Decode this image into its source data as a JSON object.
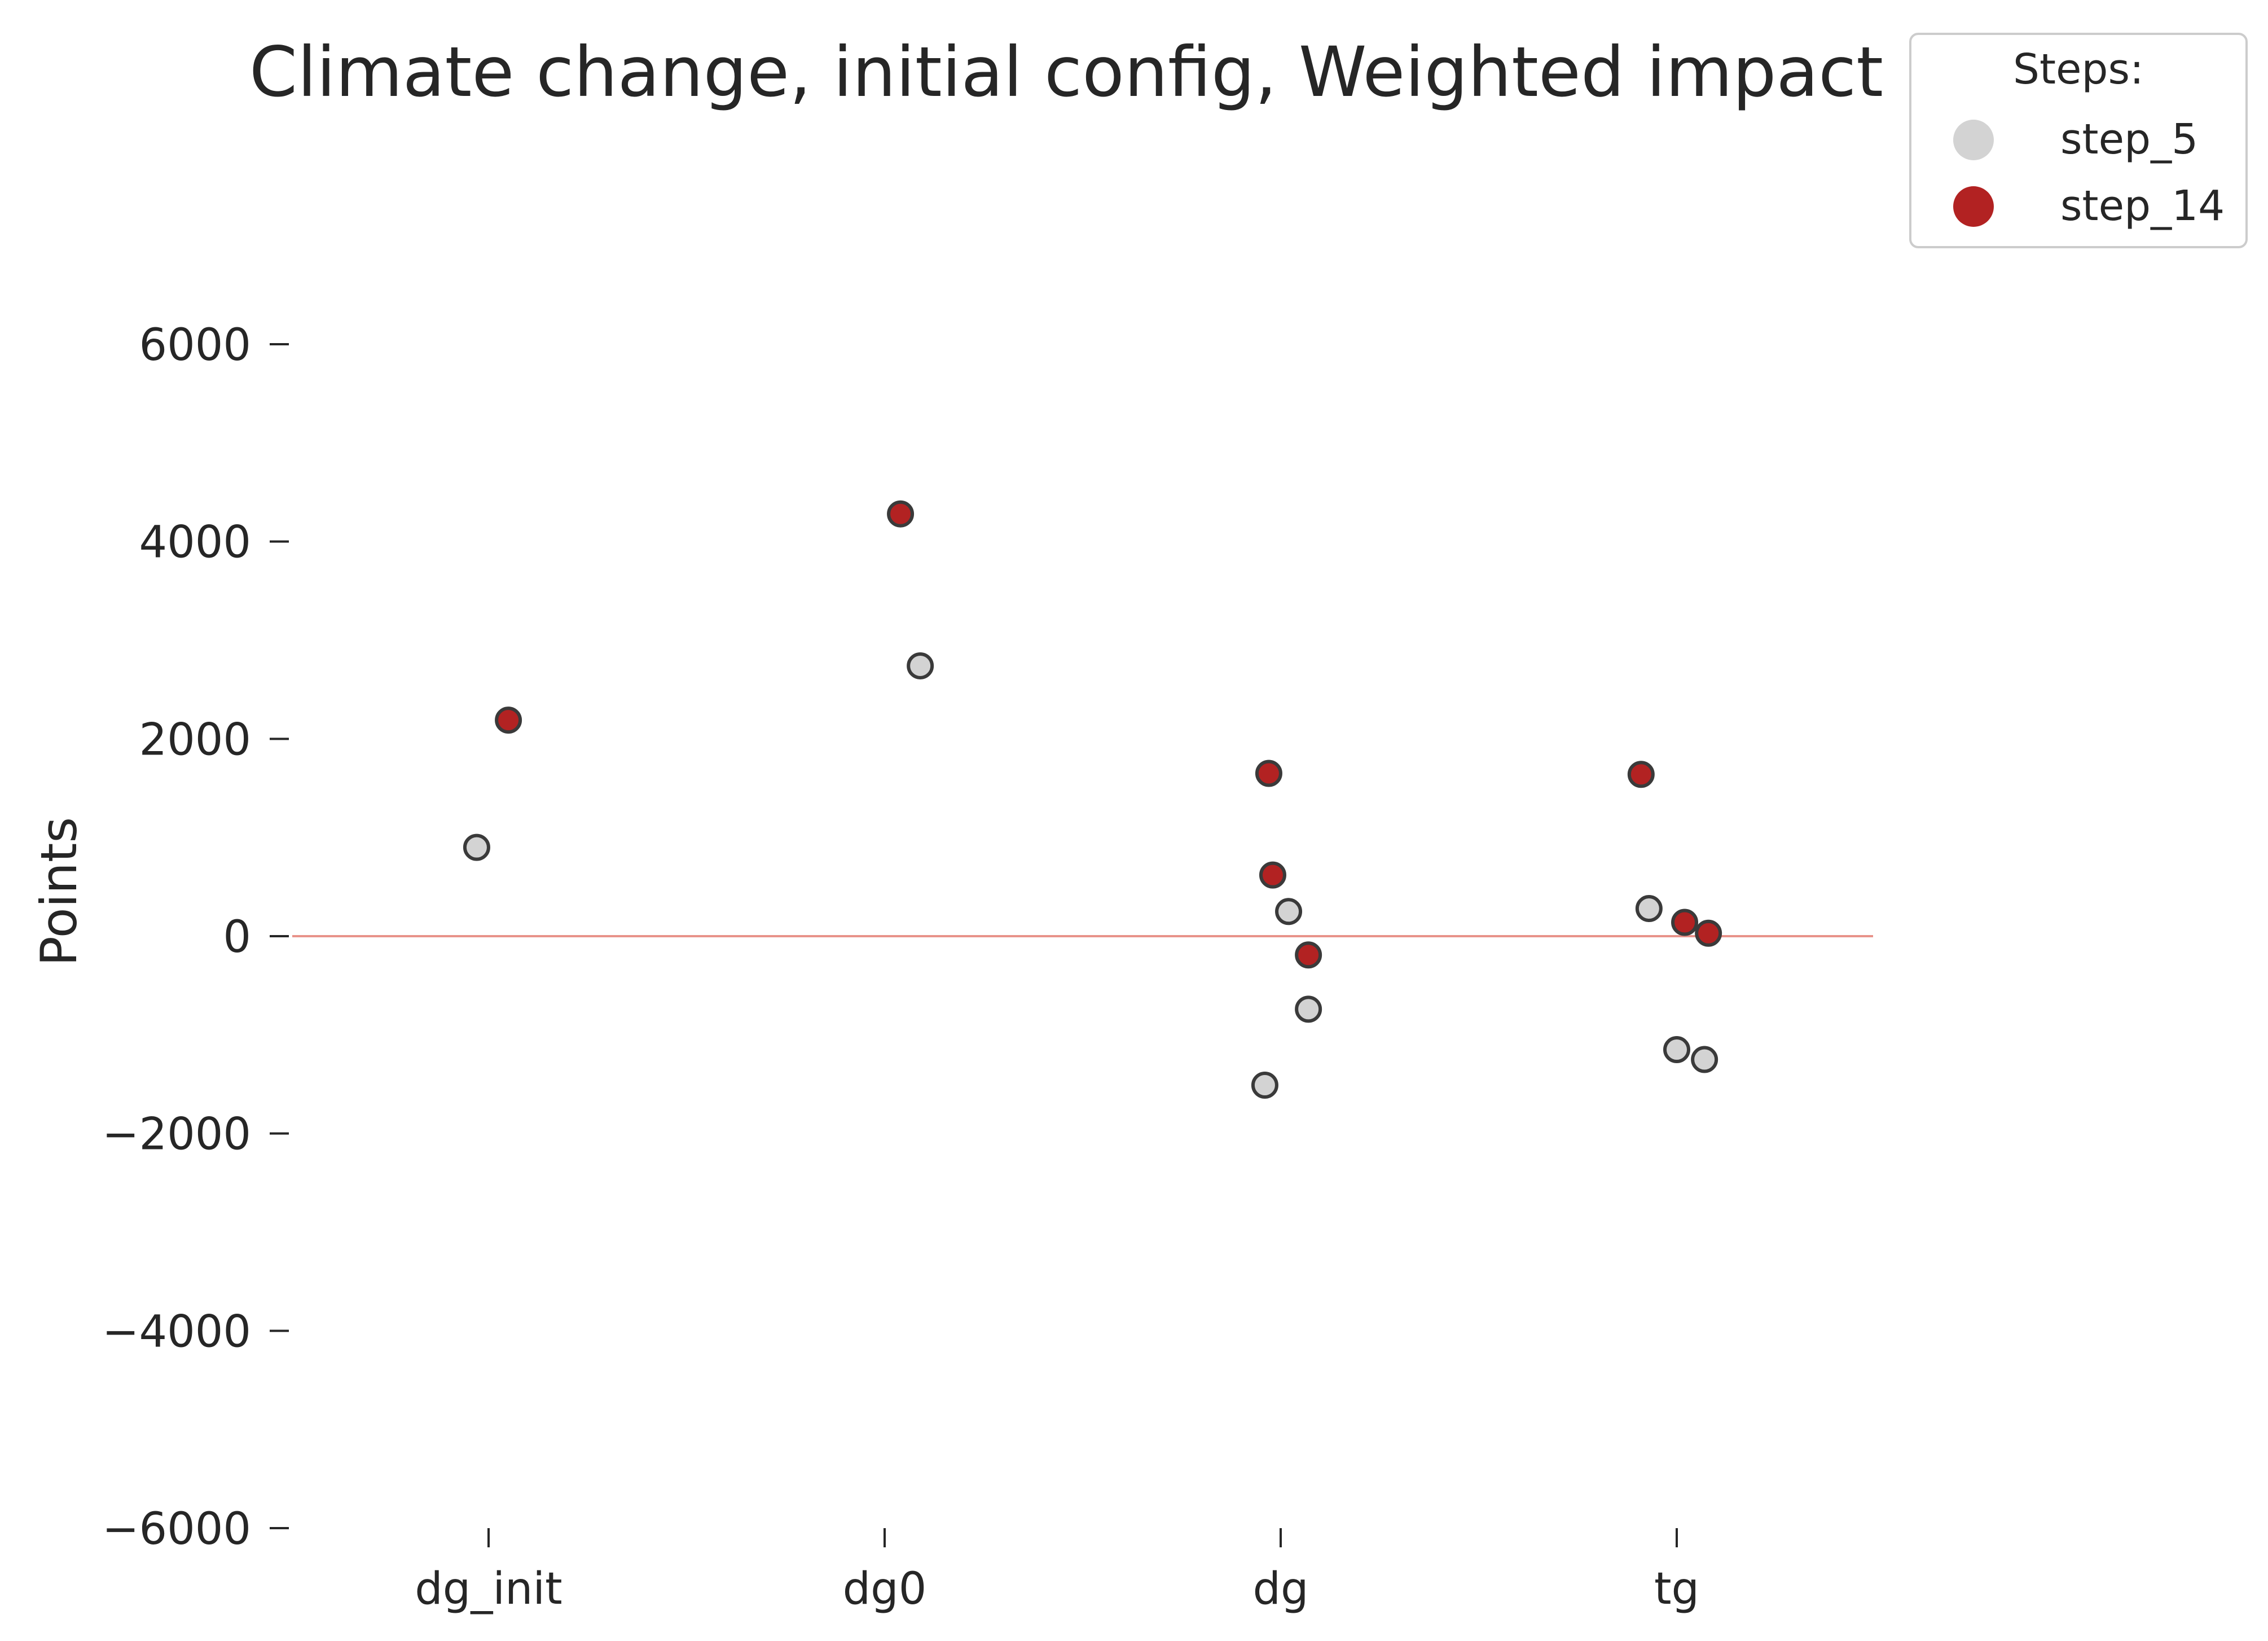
{
  "chart_data": {
    "type": "scatter",
    "title": "Climate change, initial config, Weighted impact",
    "xlabel": "",
    "ylabel": "Points",
    "categories": [
      "dg_init",
      "dg0",
      "dg",
      "tg"
    ],
    "ylim": [
      -6000,
      6000
    ],
    "yticks": [
      6000,
      4000,
      2000,
      0,
      -2000,
      -4000,
      -6000
    ],
    "ytick_labels": [
      "6000",
      "4000",
      "2000",
      "0",
      "−2000",
      "−4000",
      "−6000"
    ],
    "reference_line": {
      "y": 0,
      "color": "#e8928a"
    },
    "grid": false,
    "legend": {
      "title": "Steps:",
      "placement": "top-right"
    },
    "series": [
      {
        "name": "step_5",
        "color": "#d3d3d3",
        "points": [
          {
            "category": "dg_init",
            "offset": -0.03,
            "y": 900
          },
          {
            "category": "dg0",
            "offset": 0.09,
            "y": 2740
          },
          {
            "category": "dg",
            "offset": 0.02,
            "y": 250
          },
          {
            "category": "dg",
            "offset": 0.07,
            "y": -740
          },
          {
            "category": "dg",
            "offset": -0.04,
            "y": -1510
          },
          {
            "category": "tg",
            "offset": -0.07,
            "y": 280
          },
          {
            "category": "tg",
            "offset": 0.0,
            "y": -1150
          },
          {
            "category": "tg",
            "offset": 0.07,
            "y": -1250
          }
        ]
      },
      {
        "name": "step_14",
        "color": "#b22222",
        "points": [
          {
            "category": "dg_init",
            "offset": 0.05,
            "y": 2190
          },
          {
            "category": "dg0",
            "offset": 0.04,
            "y": 4280
          },
          {
            "category": "dg",
            "offset": -0.03,
            "y": 1650
          },
          {
            "category": "dg",
            "offset": -0.02,
            "y": 620
          },
          {
            "category": "dg",
            "offset": 0.07,
            "y": -190
          },
          {
            "category": "tg",
            "offset": -0.09,
            "y": 1640
          },
          {
            "category": "tg",
            "offset": 0.02,
            "y": 140
          },
          {
            "category": "tg",
            "offset": 0.08,
            "y": 30
          }
        ]
      }
    ]
  }
}
